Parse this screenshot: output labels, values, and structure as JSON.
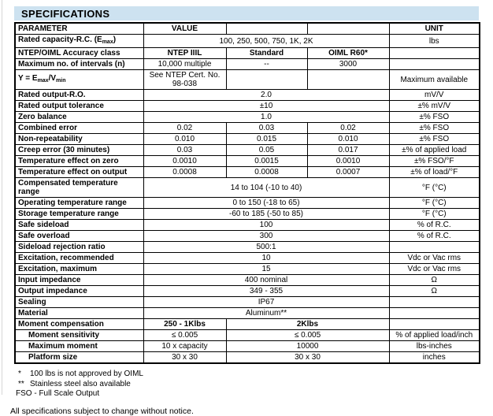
{
  "title": "SPECIFICATIONS",
  "colors": {
    "title_bar_bg": "#cde2f0",
    "border": "#000000",
    "text": "#000000"
  },
  "table": {
    "headers": {
      "parameter": "PARAMETER",
      "value": "VALUE",
      "empty1": "",
      "empty2": "",
      "unit": "UNIT"
    },
    "rows": [
      {
        "param": "Rated capacity-R.C. (E{max})",
        "cells": [
          {
            "text": "100, 250, 500, 750, 1K, 2K",
            "span": 3
          }
        ],
        "unit": "lbs"
      },
      {
        "param": "NTEP/OIML Accuracy class",
        "cells": [
          {
            "text": "NTEP IIIL",
            "bold": true
          },
          {
            "text": "Standard",
            "bold": true
          },
          {
            "text": "OIML R60*",
            "bold": true
          }
        ],
        "unit": ""
      },
      {
        "param": "Maximum no. of intervals (n)",
        "cells": [
          {
            "text": "10,000 multiple"
          },
          {
            "text": "--"
          },
          {
            "text": "3000"
          }
        ],
        "unit": ""
      },
      {
        "param": "Y = E{max}/V{min}",
        "cells": [
          {
            "text": "See NTEP Cert. No. 98-038"
          },
          {
            "text": ""
          },
          {
            "text": ""
          }
        ],
        "unit": "Maximum available"
      },
      {
        "param": "Rated output-R.O.",
        "cells": [
          {
            "text": "2.0",
            "span": 3
          }
        ],
        "unit": "mV/V"
      },
      {
        "param": "Rated output tolerance",
        "cells": [
          {
            "text": "±10",
            "span": 3
          }
        ],
        "unit": "±% mV/V"
      },
      {
        "param": "Zero balance",
        "cells": [
          {
            "text": "1.0",
            "span": 3
          }
        ],
        "unit": "±% FSO"
      },
      {
        "param": "Combined error",
        "cells": [
          {
            "text": "0.02"
          },
          {
            "text": "0.03"
          },
          {
            "text": "0.02"
          }
        ],
        "unit": "±% FSO"
      },
      {
        "param": "Non-repeatability",
        "cells": [
          {
            "text": "0.010"
          },
          {
            "text": "0.015"
          },
          {
            "text": "0.010"
          }
        ],
        "unit": "±% FSO"
      },
      {
        "param": "Creep error (30 minutes)",
        "cells": [
          {
            "text": "0.03"
          },
          {
            "text": "0.05"
          },
          {
            "text": "0.017"
          }
        ],
        "unit": "±% of applied load"
      },
      {
        "param": "Temperature effect on zero",
        "cells": [
          {
            "text": "0.0010"
          },
          {
            "text": "0.0015"
          },
          {
            "text": "0.0010"
          }
        ],
        "unit": "±% FSO/°F"
      },
      {
        "param": "Temperature effect on output",
        "cells": [
          {
            "text": "0.0008"
          },
          {
            "text": "0.0008"
          },
          {
            "text": "0.0007"
          }
        ],
        "unit": "±% of load/°F"
      },
      {
        "param": "Compensated temperature range",
        "cells": [
          {
            "text": "14 to 104 (-10 to 40)",
            "span": 3
          }
        ],
        "unit": "°F (°C)"
      },
      {
        "param": "Operating temperature range",
        "cells": [
          {
            "text": "0 to 150 (-18 to 65)",
            "span": 3
          }
        ],
        "unit": "°F (°C)"
      },
      {
        "param": "Storage temperature range",
        "cells": [
          {
            "text": "-60 to 185 (-50 to 85)",
            "span": 3
          }
        ],
        "unit": "°F (°C)"
      },
      {
        "param": "Safe sideload",
        "cells": [
          {
            "text": "100",
            "span": 3
          }
        ],
        "unit": "% of R.C."
      },
      {
        "param": "Safe overload",
        "cells": [
          {
            "text": "300",
            "span": 3
          }
        ],
        "unit": "% of R.C."
      },
      {
        "param": "Sideload rejection ratio",
        "cells": [
          {
            "text": "500:1",
            "span": 3
          }
        ],
        "unit": ""
      },
      {
        "param": "Excitation, recommended",
        "cells": [
          {
            "text": "10",
            "span": 3
          }
        ],
        "unit": "Vdc or Vac rms"
      },
      {
        "param": "Excitation, maximum",
        "cells": [
          {
            "text": "15",
            "span": 3
          }
        ],
        "unit": "Vdc or Vac rms"
      },
      {
        "param": "Input impedance",
        "cells": [
          {
            "text": "400 nominal",
            "span": 3
          }
        ],
        "unit": "Ω"
      },
      {
        "param": "Output impedance",
        "cells": [
          {
            "text": "349 - 355",
            "span": 3
          }
        ],
        "unit": "Ω"
      },
      {
        "param": "Sealing",
        "cells": [
          {
            "text": "IP67",
            "span": 3
          }
        ],
        "unit": ""
      },
      {
        "param": "Material",
        "cells": [
          {
            "text": "Aluminum**",
            "span": 3
          }
        ],
        "unit": ""
      },
      {
        "param": "Moment compensation",
        "cells": [
          {
            "text": "250 - 1Klbs",
            "bold": true
          },
          {
            "text": "2Klbs",
            "span": 2,
            "bold": true
          }
        ],
        "unit": ""
      },
      {
        "param": "Moment sensitivity",
        "indent": true,
        "cells": [
          {
            "text": "≤ 0.005"
          },
          {
            "text": "≤ 0.005",
            "span": 2
          }
        ],
        "unit": "% of applied load/inch"
      },
      {
        "param": "Maximum moment",
        "indent": true,
        "cells": [
          {
            "text": "10 x capacity"
          },
          {
            "text": "10000",
            "span": 2
          }
        ],
        "unit": "lbs-inches"
      },
      {
        "param": "Platform size",
        "indent": true,
        "cells": [
          {
            "text": "30 x 30"
          },
          {
            "text": "30 x 30",
            "span": 2
          }
        ],
        "unit": "inches"
      }
    ]
  },
  "footnotes": [
    {
      "marker": "*",
      "text": "100 lbs is not approved by OIML"
    },
    {
      "marker": "**",
      "text": "Stainless steel also available"
    }
  ],
  "fso_note": "FSO - Full Scale Output",
  "bottom_note": "All specifications subject to change without notice."
}
